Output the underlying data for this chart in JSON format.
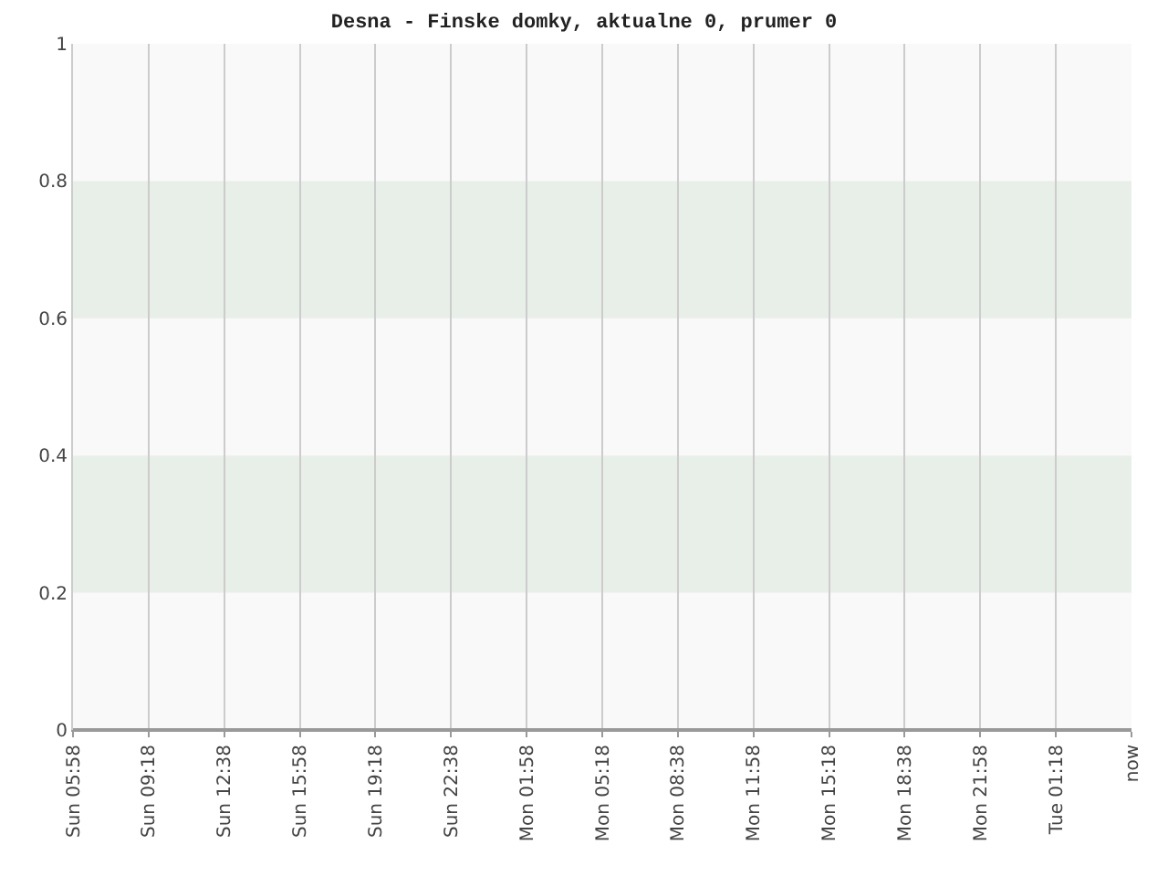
{
  "chart_data": {
    "type": "line",
    "title": "Desna - Finske domky, aktualne 0, prumer 0",
    "categories": [
      "Sun 05:58",
      "Sun 09:18",
      "Sun 12:38",
      "Sun 15:58",
      "Sun 19:18",
      "Sun 22:38",
      "Mon 01:58",
      "Mon 05:18",
      "Mon 08:38",
      "Mon 11:58",
      "Mon 15:18",
      "Mon 18:38",
      "Mon 21:58",
      "Tue 01:18",
      "now"
    ],
    "series": [
      {
        "color": "#999999",
        "values": [
          0,
          0,
          0,
          0,
          0,
          0,
          0,
          0,
          0,
          0,
          0,
          0,
          0,
          0,
          0
        ]
      }
    ],
    "ylim": [
      0,
      1
    ],
    "yticks": [
      0,
      0.2,
      0.4,
      0.6,
      0.8,
      1
    ],
    "bands": [
      {
        "axis": "y",
        "from": 0.2,
        "to": 0.4,
        "color": "#e8eee8"
      },
      {
        "axis": "y",
        "from": 0.6,
        "to": 0.8,
        "color": "#e8eee8"
      }
    ],
    "grid": "x",
    "legend": false,
    "marker": "none",
    "line_style": "solid"
  }
}
